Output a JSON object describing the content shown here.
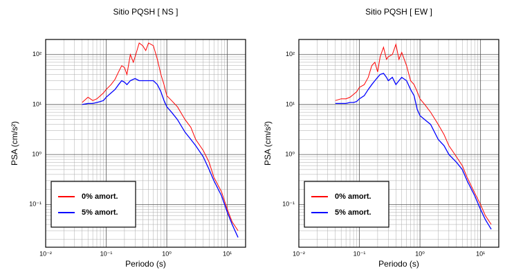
{
  "chart_data": [
    {
      "type": "line",
      "title": "Sitio PQSH [ NS ]",
      "x_label": "Periodo (s)",
      "y_label": "PSA (cm/s²)",
      "log_x": true,
      "log_y": true,
      "grid": true,
      "minor_grid": [
        2,
        3,
        4,
        5,
        6,
        7,
        8,
        9
      ],
      "legend": "lower left",
      "xlim": [
        0.01,
        20
      ],
      "ylim": [
        0.014,
        200
      ],
      "xticks": [
        {
          "value": 0.01,
          "label": "10⁻²"
        },
        {
          "value": 0.1,
          "label": "10⁻¹"
        },
        {
          "value": 1,
          "label": "10⁰"
        },
        {
          "value": 10,
          "label": "10¹"
        }
      ],
      "yticks": [
        {
          "value": 0.1,
          "label": "10⁻¹"
        },
        {
          "value": 1,
          "label": "10⁰"
        },
        {
          "value": 10,
          "label": "10¹"
        },
        {
          "value": 100,
          "label": "10²"
        }
      ],
      "x": [
        0.04,
        0.05,
        0.06,
        0.07,
        0.08,
        0.09,
        0.1,
        0.12,
        0.14,
        0.16,
        0.18,
        0.2,
        0.22,
        0.25,
        0.28,
        0.3,
        0.35,
        0.4,
        0.45,
        0.5,
        0.6,
        0.7,
        0.8,
        0.9,
        1.0,
        1.2,
        1.5,
        2,
        2.5,
        3,
        4,
        5,
        6,
        8,
        10,
        12,
        15
      ],
      "series": [
        {
          "name": "0% amort.",
          "color": "#ff0000",
          "values": [
            11,
            14,
            12,
            13,
            15,
            17,
            20,
            25,
            32,
            45,
            60,
            55,
            40,
            100,
            70,
            90,
            170,
            150,
            120,
            170,
            150,
            80,
            40,
            25,
            15,
            12,
            9,
            5,
            3.5,
            2,
            1.2,
            0.7,
            0.35,
            0.18,
            0.08,
            0.045,
            0.03
          ]
        },
        {
          "name": "5% amort.",
          "color": "#0000ff",
          "values": [
            10,
            10.5,
            10.5,
            11,
            11.5,
            12,
            14,
            17,
            20,
            25,
            30,
            28,
            25,
            30,
            32,
            33,
            30,
            30,
            30,
            30,
            30,
            25,
            18,
            12,
            9,
            7,
            5,
            2.8,
            2,
            1.5,
            0.9,
            0.5,
            0.3,
            0.15,
            0.07,
            0.04,
            0.022
          ]
        }
      ]
    },
    {
      "type": "line",
      "title": "Sitio PQSH [ EW ]",
      "x_label": "Periodo (s)",
      "y_label": "PSA (cm/s²)",
      "log_x": true,
      "log_y": true,
      "grid": true,
      "minor_grid": [
        2,
        3,
        4,
        5,
        6,
        7,
        8,
        9
      ],
      "legend": "lower left",
      "xlim": [
        0.01,
        20
      ],
      "ylim": [
        0.014,
        200
      ],
      "xticks": [
        {
          "value": 0.01,
          "label": "10⁻²"
        },
        {
          "value": 0.1,
          "label": "10⁻¹"
        },
        {
          "value": 1,
          "label": "10⁰"
        },
        {
          "value": 10,
          "label": "10¹"
        }
      ],
      "yticks": [
        {
          "value": 0.1,
          "label": "10⁻¹"
        },
        {
          "value": 1,
          "label": "10⁰"
        },
        {
          "value": 10,
          "label": "10¹"
        },
        {
          "value": 100,
          "label": "10²"
        }
      ],
      "x": [
        0.04,
        0.05,
        0.06,
        0.07,
        0.08,
        0.09,
        0.1,
        0.12,
        0.14,
        0.16,
        0.18,
        0.2,
        0.22,
        0.25,
        0.28,
        0.3,
        0.35,
        0.4,
        0.45,
        0.5,
        0.6,
        0.7,
        0.8,
        0.9,
        1.0,
        1.2,
        1.5,
        2,
        2.5,
        3,
        4,
        5,
        6,
        8,
        10,
        12,
        15
      ],
      "series": [
        {
          "name": "0% amort.",
          "color": "#ff0000",
          "values": [
            12,
            13,
            13,
            14,
            16,
            18,
            22,
            25,
            35,
            60,
            70,
            45,
            90,
            140,
            80,
            90,
            100,
            160,
            80,
            110,
            60,
            30,
            25,
            18,
            13,
            10,
            7,
            4,
            2.5,
            1.5,
            0.9,
            0.6,
            0.35,
            0.17,
            0.1,
            0.06,
            0.04
          ]
        },
        {
          "name": "5% amort.",
          "color": "#0000ff",
          "values": [
            10.5,
            10.5,
            10.5,
            11,
            11,
            11.5,
            13,
            15,
            20,
            25,
            30,
            35,
            40,
            42,
            35,
            30,
            35,
            25,
            30,
            35,
            30,
            20,
            15,
            8,
            6,
            5,
            4,
            2,
            1.5,
            1.0,
            0.7,
            0.5,
            0.3,
            0.15,
            0.08,
            0.05,
            0.032
          ]
        }
      ]
    }
  ]
}
